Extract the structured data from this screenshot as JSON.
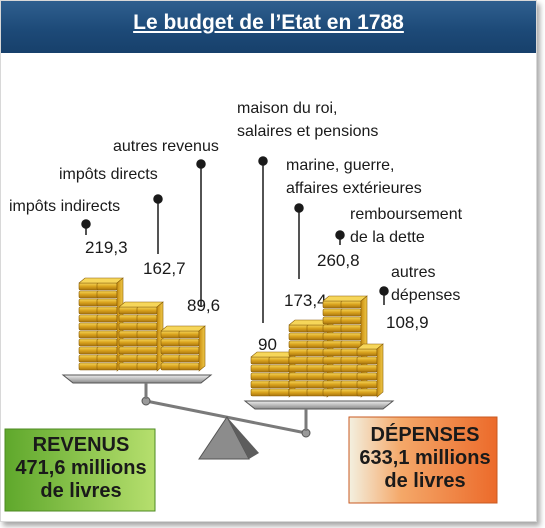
{
  "title": "Le budget de l’Etat en 1788",
  "colors": {
    "title_bar": "#1d4a78",
    "revenus_box": "#78bd3a",
    "depenses_box": "#f07b3c",
    "gold": "#d9a21c"
  },
  "revenus": {
    "labels": [
      "impôts indirects",
      "impôts directs",
      "autres revenus"
    ],
    "values": [
      "219,3",
      "162,7",
      "89,6"
    ],
    "total_line1": "REVENUS",
    "total_line2": "471,6 millions",
    "total_line3": "de livres"
  },
  "depenses": {
    "labels": {
      "maison_line1": "maison du roi,",
      "maison_line2": "salaires et pensions",
      "marine_line1": "marine, guerre,",
      "marine_line2": "affaires extérieures",
      "dette_line1": "remboursement",
      "dette_line2": "de la dette",
      "autres_line1": "autres",
      "autres_line2": "dépenses"
    },
    "values": [
      "90",
      "173,4",
      "260,8",
      "108,9"
    ],
    "total_line1": "DÉPENSES",
    "total_line2": "633,1 millions",
    "total_line3": "de livres"
  }
}
